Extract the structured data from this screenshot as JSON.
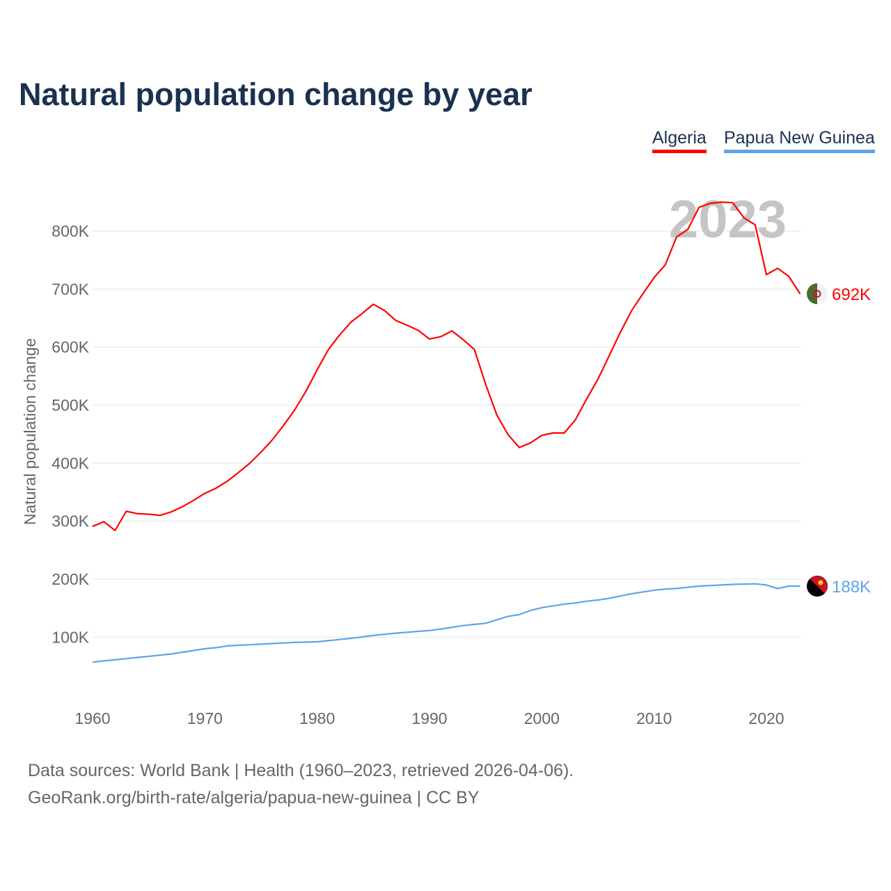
{
  "title": "Natural population change by year",
  "legend": [
    "Algeria",
    "Papua New Guinea"
  ],
  "source_line1": "Data sources: World Bank | Health (1960–2023, retrieved 2026-04-06).",
  "source_line2": "GeoRank.org/birth-rate/algeria/papua-new-guinea | CC BY",
  "chart_data": {
    "type": "line",
    "title": "Natural population change by year",
    "ylabel": "Natural population change",
    "xlabel": "",
    "year_label": "2023",
    "ylim": [
      0,
      900000
    ],
    "xlim": [
      1960,
      2023
    ],
    "yticks": [
      {
        "v": 100000,
        "l": "100K"
      },
      {
        "v": 200000,
        "l": "200K"
      },
      {
        "v": 300000,
        "l": "300K"
      },
      {
        "v": 400000,
        "l": "400K"
      },
      {
        "v": 500000,
        "l": "500K"
      },
      {
        "v": 600000,
        "l": "600K"
      },
      {
        "v": 700000,
        "l": "700K"
      },
      {
        "v": 800000,
        "l": "800K"
      }
    ],
    "xticks": [
      1960,
      1970,
      1980,
      1990,
      2000,
      2010,
      2020
    ],
    "x_start": 1960,
    "series": [
      {
        "name": "Algeria",
        "color": "#ff0000",
        "end_label": "692K",
        "flag": "algeria-flag",
        "values": [
          291000,
          299000,
          284000,
          317000,
          313000,
          312000,
          310000,
          316000,
          325000,
          336000,
          348000,
          357000,
          369000,
          384000,
          400000,
          419000,
          440000,
          465000,
          492000,
          524000,
          561000,
          596000,
          621000,
          643000,
          658000,
          674000,
          663000,
          646000,
          638000,
          629000,
          614000,
          618000,
          628000,
          613000,
          596000,
          536000,
          483000,
          449000,
          427000,
          435000,
          448000,
          452000,
          452000,
          475000,
          511000,
          545000,
          585000,
          626000,
          663000,
          692000,
          720000,
          742000,
          790000,
          803000,
          841000,
          848000,
          850000,
          849000,
          823000,
          811000,
          725000,
          736000,
          722000,
          692000
        ]
      },
      {
        "name": "Papua New Guinea",
        "color": "#5ea4e8",
        "end_label": "188K",
        "flag": "papua-new-guinea-flag",
        "values": [
          57000,
          59000,
          61000,
          63000,
          65000,
          67000,
          69000,
          71000,
          74000,
          77000,
          80000,
          82000,
          85000,
          86000,
          87000,
          88000,
          89000,
          90000,
          91000,
          91500,
          92000,
          94000,
          96000,
          98000,
          100500,
          103000,
          105000,
          107000,
          108500,
          110000,
          111500,
          114000,
          117000,
          120000,
          122000,
          124000,
          130000,
          136000,
          139000,
          146000,
          151000,
          154000,
          157000,
          159000,
          162000,
          164000,
          167000,
          171000,
          175000,
          178000,
          181000,
          183000,
          184000,
          186000,
          188000,
          189000,
          190000,
          191000,
          191500,
          192000,
          190000,
          184000,
          188000,
          188000
        ]
      }
    ]
  }
}
